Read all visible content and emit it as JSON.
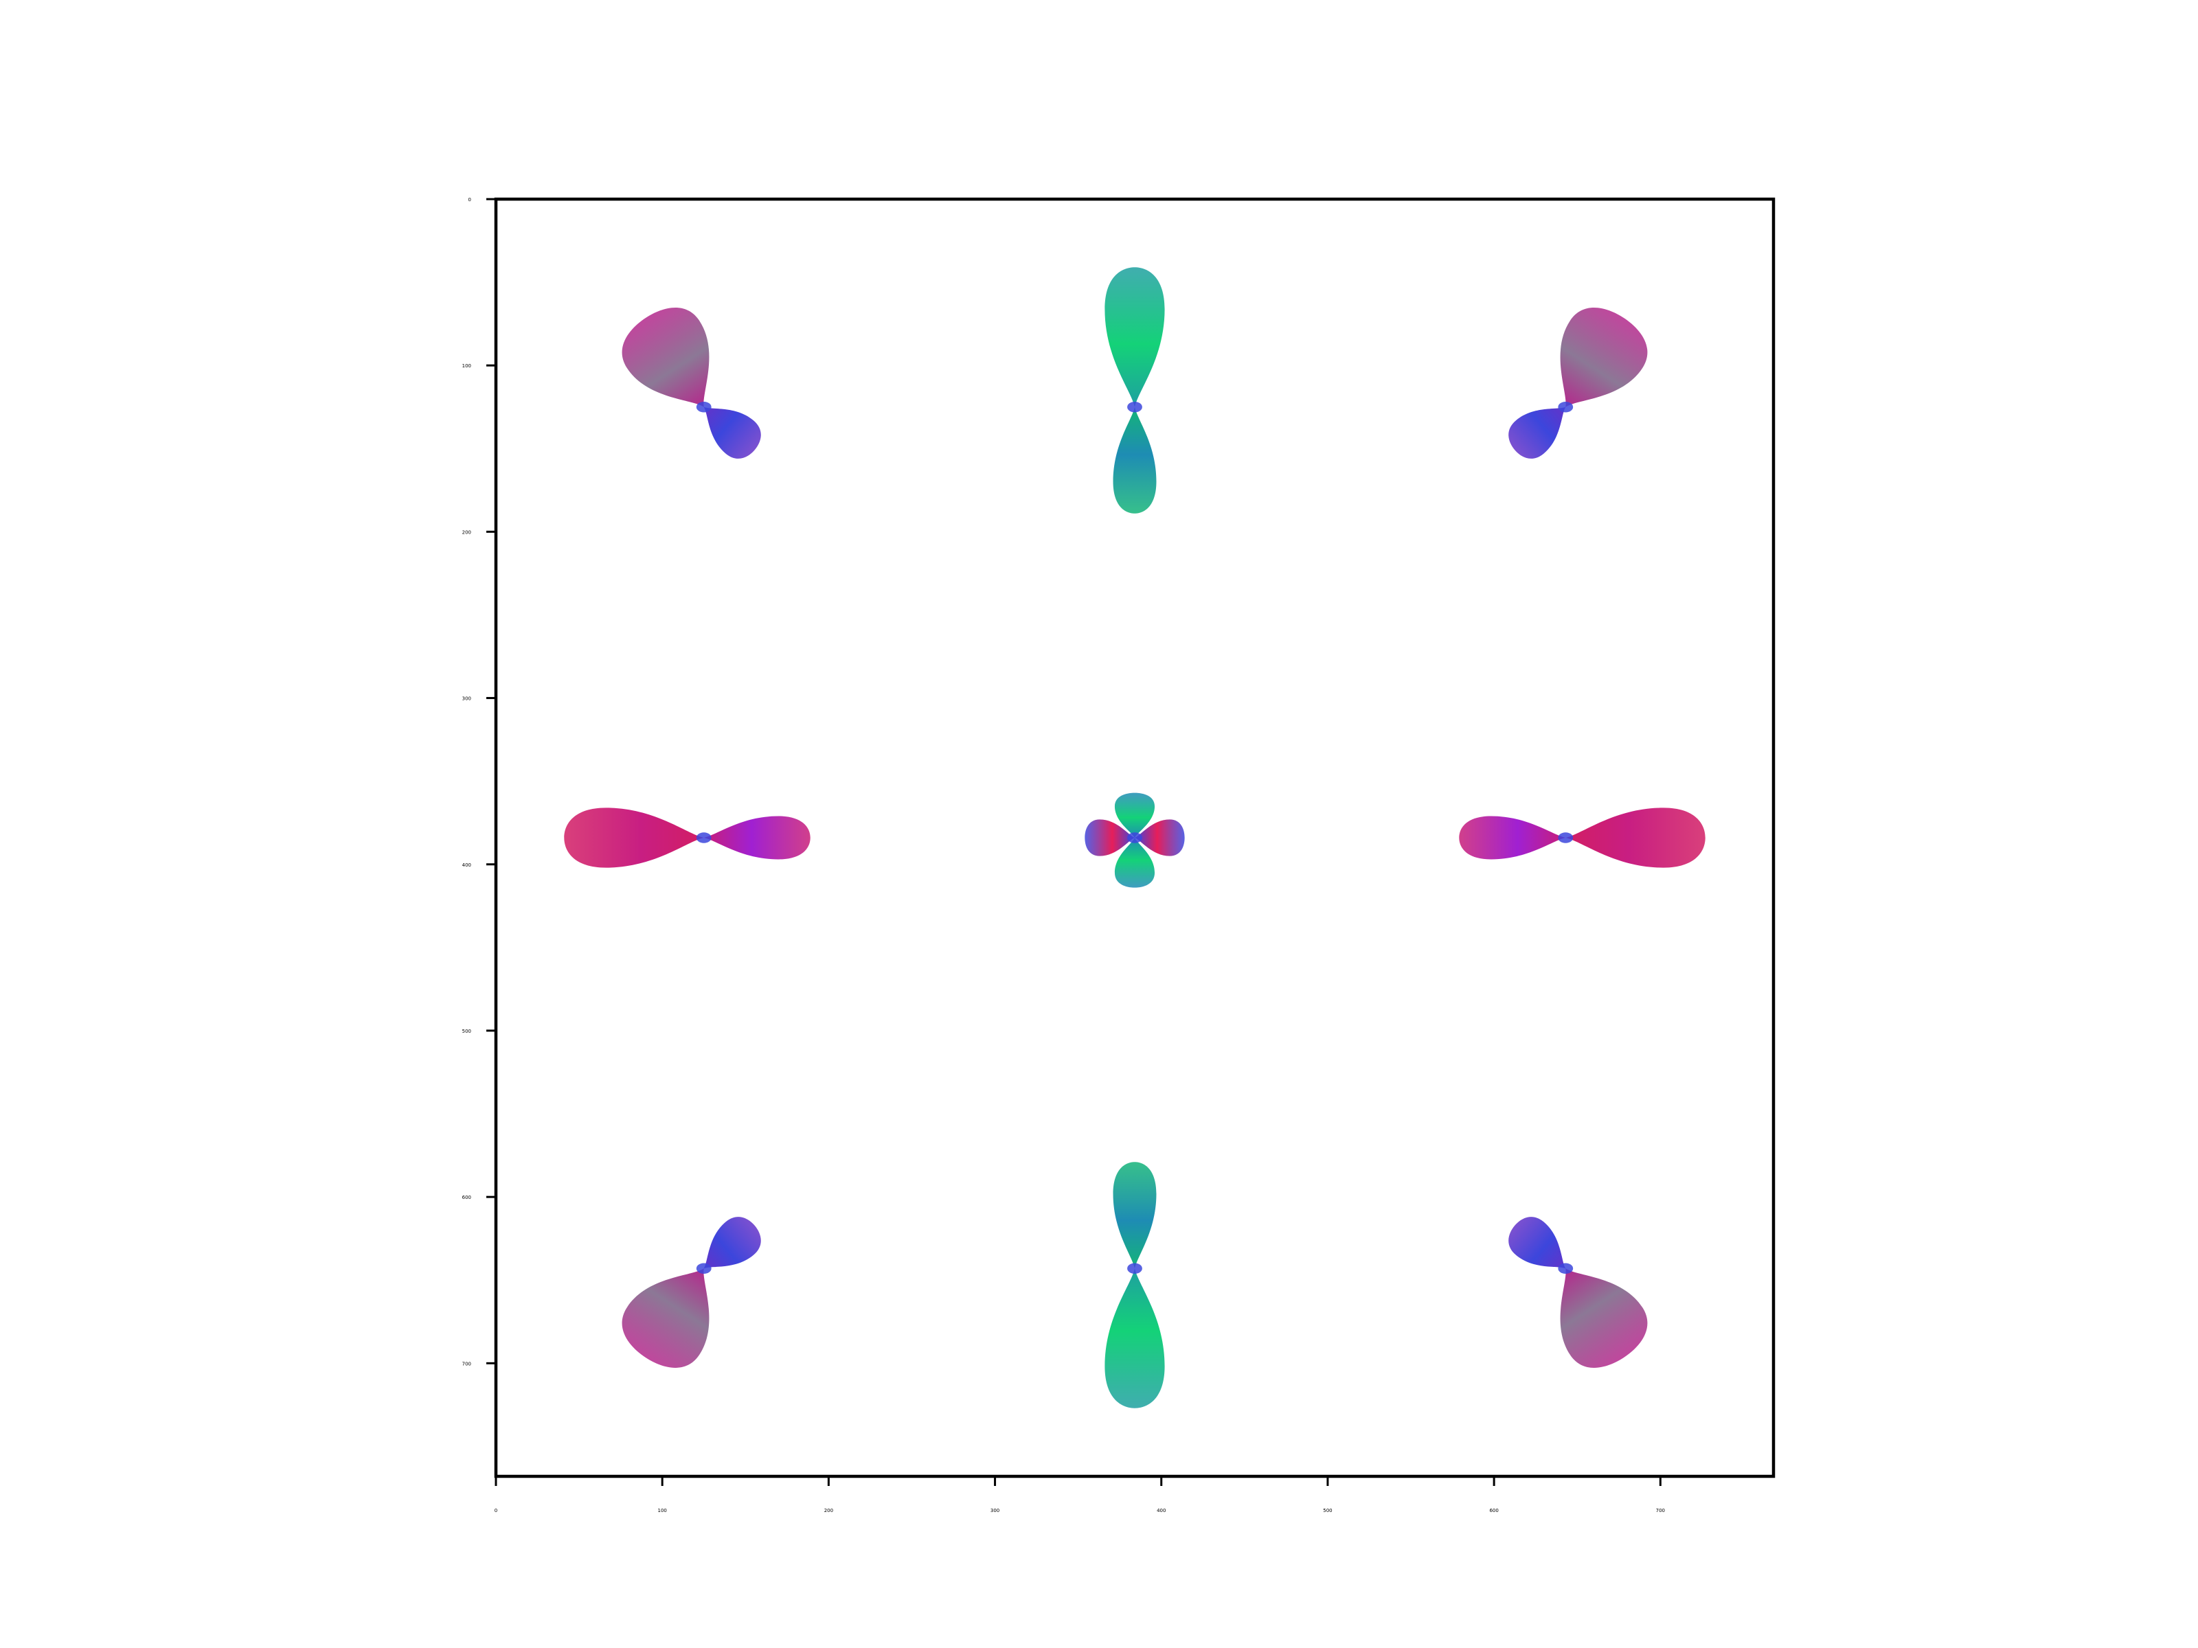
{
  "chart_data": {
    "type": "image",
    "title": "",
    "xlabel": "",
    "ylabel": "",
    "xlim": [
      0,
      768
    ],
    "ylim": [
      768,
      0
    ],
    "grid": false,
    "legend": "none",
    "xticks": [
      0,
      100,
      200,
      300,
      400,
      500,
      600,
      700
    ],
    "yticks": [
      0,
      100,
      200,
      300,
      400,
      500,
      600,
      700
    ],
    "xtick_labels": [
      "0",
      "100",
      "200",
      "300",
      "400",
      "500",
      "600",
      "700"
    ],
    "ytick_labels": [
      "0",
      "100",
      "200",
      "300",
      "400",
      "500",
      "600",
      "700"
    ],
    "glyph_colors": {
      "magenta": "#c81e6e",
      "purple": "#a020d2",
      "green": "#14d278",
      "teal": "#1e8cb4",
      "blue": "#3c46dc",
      "gray": "#8c7896"
    },
    "glyphs": [
      {
        "name": "glyph-top-left",
        "cx": 125,
        "cy": 125,
        "lobes": [
          {
            "angle": -123,
            "len": 64,
            "w": 26,
            "base": "#b4288c",
            "tip": "#8c7896"
          },
          {
            "angle": 40,
            "len": 40,
            "w": 13,
            "base": "#6432c8",
            "tip": "#3c46dc"
          }
        ]
      },
      {
        "name": "glyph-top-center",
        "cx": 384,
        "cy": 125,
        "lobes": [
          {
            "angle": -90,
            "len": 84,
            "w": 18,
            "base": "#1ea0a0",
            "tip": "#14d278"
          },
          {
            "angle": 90,
            "len": 64,
            "w": 13,
            "base": "#14b478",
            "tip": "#1e8cb4"
          }
        ]
      },
      {
        "name": "glyph-top-right",
        "cx": 643,
        "cy": 125,
        "lobes": [
          {
            "angle": -57,
            "len": 64,
            "w": 26,
            "base": "#b4288c",
            "tip": "#8c7896"
          },
          {
            "angle": 140,
            "len": 40,
            "w": 13,
            "base": "#6432c8",
            "tip": "#3c46dc"
          }
        ]
      },
      {
        "name": "glyph-middle-left",
        "cx": 125,
        "cy": 384,
        "lobes": [
          {
            "angle": 180,
            "len": 84,
            "w": 18,
            "base": "#d21e64",
            "tip": "#c81e82"
          },
          {
            "angle": 0,
            "len": 64,
            "w": 13,
            "base": "#c81e78",
            "tip": "#a020d2"
          }
        ]
      },
      {
        "name": "glyph-center",
        "cx": 384,
        "cy": 384,
        "lobes": [
          {
            "angle": -90,
            "len": 27,
            "w": 12,
            "base": "#1e8cb4",
            "tip": "#14d278"
          },
          {
            "angle": 90,
            "len": 30,
            "w": 12,
            "base": "#1e8cb4",
            "tip": "#14d278"
          },
          {
            "angle": 180,
            "len": 30,
            "w": 11,
            "base": "#3c46dc",
            "tip": "#e61e5a"
          },
          {
            "angle": 0,
            "len": 30,
            "w": 11,
            "base": "#3c46dc",
            "tip": "#e61e5a"
          }
        ]
      },
      {
        "name": "glyph-middle-right",
        "cx": 643,
        "cy": 384,
        "lobes": [
          {
            "angle": 0,
            "len": 84,
            "w": 18,
            "base": "#d21e64",
            "tip": "#c81e82"
          },
          {
            "angle": 180,
            "len": 64,
            "w": 13,
            "base": "#c81e78",
            "tip": "#a020d2"
          }
        ]
      },
      {
        "name": "glyph-bottom-left",
        "cx": 125,
        "cy": 643,
        "lobes": [
          {
            "angle": 123,
            "len": 64,
            "w": 26,
            "base": "#b4288c",
            "tip": "#8c7896"
          },
          {
            "angle": -40,
            "len": 40,
            "w": 13,
            "base": "#6432c8",
            "tip": "#3c46dc"
          }
        ]
      },
      {
        "name": "glyph-bottom-center",
        "cx": 384,
        "cy": 643,
        "lobes": [
          {
            "angle": 90,
            "len": 84,
            "w": 18,
            "base": "#1ea0a0",
            "tip": "#14d278"
          },
          {
            "angle": -90,
            "len": 64,
            "w": 13,
            "base": "#14b478",
            "tip": "#1e8cb4"
          }
        ]
      },
      {
        "name": "glyph-bottom-right",
        "cx": 643,
        "cy": 643,
        "lobes": [
          {
            "angle": 57,
            "len": 64,
            "w": 26,
            "base": "#b4288c",
            "tip": "#8c7896"
          },
          {
            "angle": -140,
            "len": 40,
            "w": 13,
            "base": "#6432c8",
            "tip": "#3c46dc"
          }
        ]
      }
    ]
  }
}
